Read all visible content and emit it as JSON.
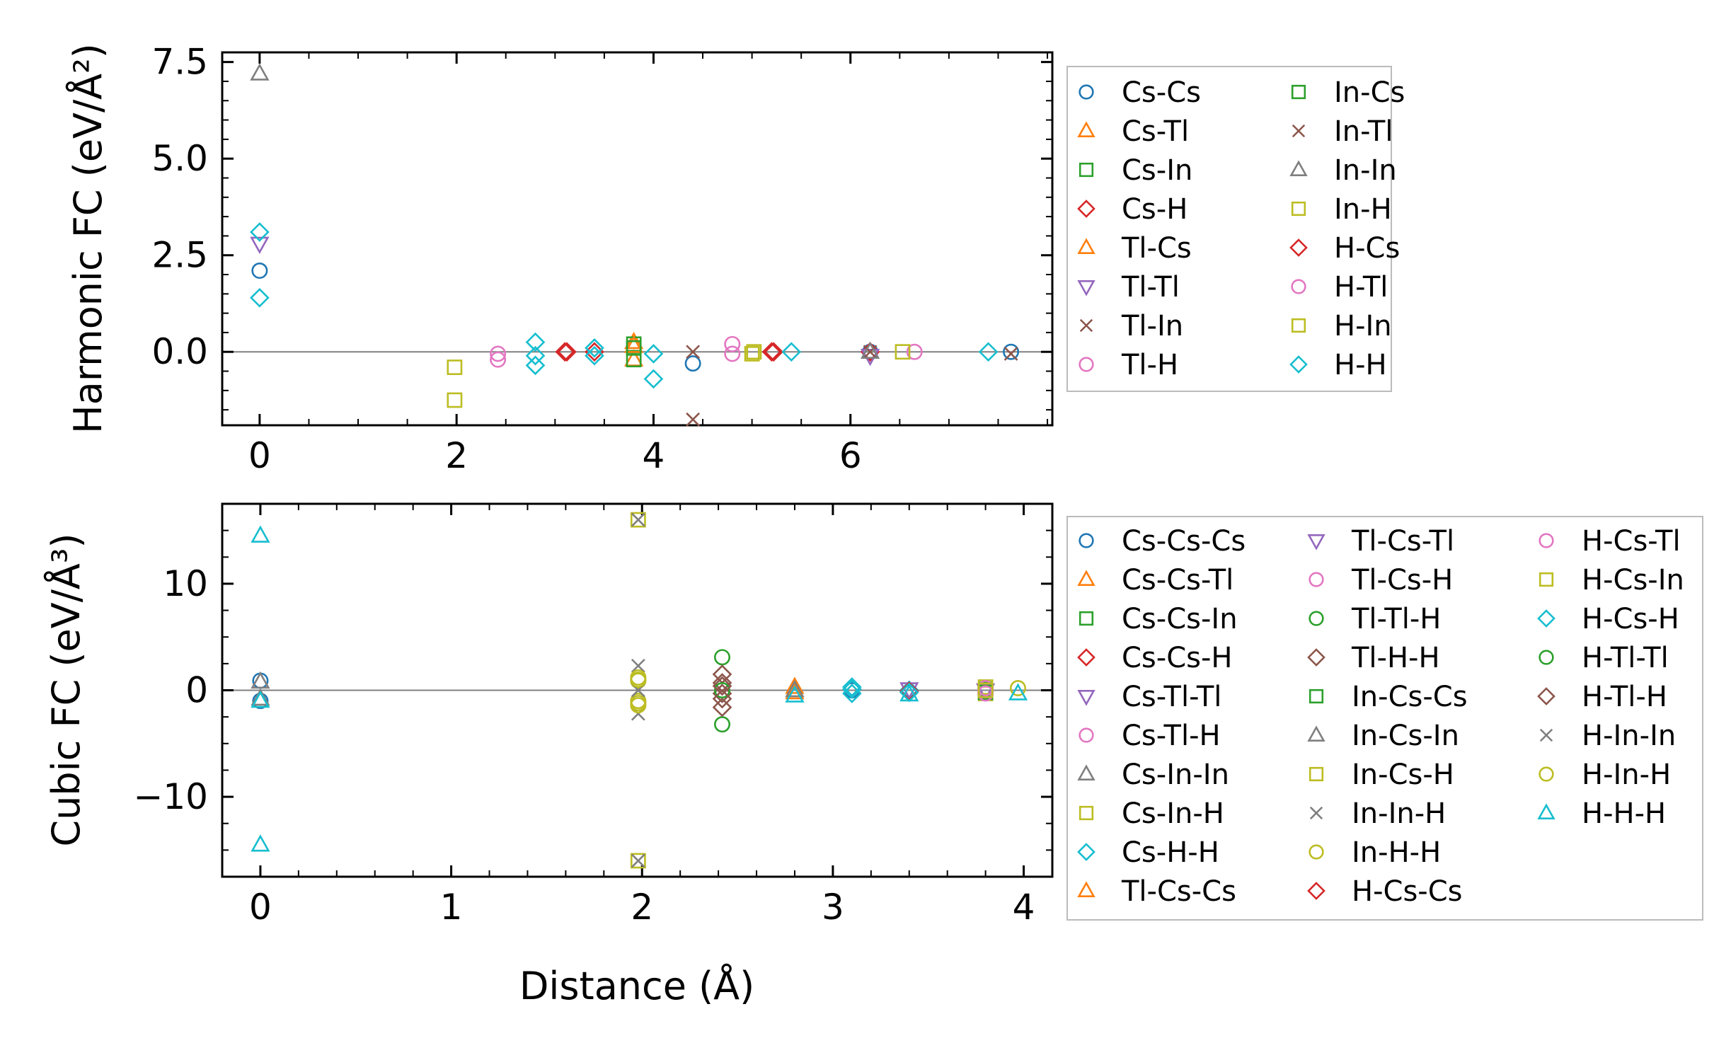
{
  "chart_data": [
    {
      "type": "scatter",
      "panel": "top",
      "title": "",
      "xlabel": "",
      "ylabel": "Harmonic FC (eV/Å²)",
      "xlim": [
        -0.38,
        8.05
      ],
      "ylim": [
        -1.9,
        7.75
      ],
      "xticks": [
        0,
        2,
        4,
        6
      ],
      "xtick_labels": [
        "0",
        "2",
        "4",
        "6"
      ],
      "yticks": [
        0,
        2.5,
        5,
        7.5
      ],
      "ytick_labels": [
        "0.0",
        "2.5",
        "5.0",
        "7.5"
      ],
      "zero_line": true,
      "grid": false,
      "legend_position": "outside-right",
      "legend_columns": 2,
      "series": [
        {
          "name": "Cs-Cs",
          "color": "#1f77b4",
          "marker": "circle",
          "points": [
            [
              0,
              2.1
            ],
            [
              4.4,
              -0.3
            ],
            [
              6.2,
              0.0
            ],
            [
              7.63,
              0.0
            ]
          ]
        },
        {
          "name": "Cs-Tl",
          "color": "#ff7f0e",
          "marker": "triangle-up",
          "points": [
            [
              3.8,
              0.25
            ],
            [
              3.8,
              -0.2
            ]
          ]
        },
        {
          "name": "Cs-In",
          "color": "#2ca02c",
          "marker": "square",
          "points": [
            [
              3.8,
              0.2
            ],
            [
              3.8,
              -0.2
            ]
          ]
        },
        {
          "name": "Cs-H",
          "color": "#d62728",
          "marker": "diamond",
          "points": [
            [
              3.1,
              0.0
            ],
            [
              3.4,
              0.0
            ],
            [
              5.2,
              0.0
            ],
            [
              6.2,
              0.0
            ]
          ]
        },
        {
          "name": "Tl-Cs",
          "color": "#ff7f0e",
          "marker": "triangle-up",
          "points": [
            [
              3.8,
              0.15
            ]
          ]
        },
        {
          "name": "Tl-Tl",
          "color": "#9467bd",
          "marker": "triangle-down",
          "points": [
            [
              0,
              2.8
            ],
            [
              6.2,
              -0.1
            ]
          ]
        },
        {
          "name": "Tl-In",
          "color": "#8c564b",
          "marker": "x",
          "points": [
            [
              4.4,
              -1.75
            ],
            [
              4.4,
              0.0
            ],
            [
              7.63,
              -0.05
            ]
          ]
        },
        {
          "name": "Tl-H",
          "color": "#e377c2",
          "marker": "circle",
          "points": [
            [
              2.42,
              -0.05
            ],
            [
              2.42,
              -0.2
            ],
            [
              6.65,
              0.0
            ]
          ]
        },
        {
          "name": "In-Cs",
          "color": "#2ca02c",
          "marker": "square",
          "points": [
            [
              3.8,
              0.1
            ]
          ]
        },
        {
          "name": "In-Tl",
          "color": "#8c564b",
          "marker": "x",
          "points": [
            [
              6.2,
              0.0
            ]
          ]
        },
        {
          "name": "In-In",
          "color": "#7f7f7f",
          "marker": "triangle-up",
          "points": [
            [
              0,
              7.2
            ],
            [
              6.2,
              0.0
            ]
          ]
        },
        {
          "name": "In-H",
          "color": "#bcbd22",
          "marker": "square",
          "points": [
            [
              1.98,
              -0.4
            ],
            [
              1.98,
              -1.25
            ],
            [
              5.0,
              -0.05
            ],
            [
              6.53,
              0.0
            ]
          ]
        },
        {
          "name": "H-Cs",
          "color": "#d62728",
          "marker": "diamond",
          "points": [
            [
              3.12,
              0.0
            ],
            [
              5.22,
              0.0
            ]
          ]
        },
        {
          "name": "H-Tl",
          "color": "#e377c2",
          "marker": "circle",
          "points": [
            [
              4.8,
              0.2
            ],
            [
              4.8,
              -0.05
            ]
          ]
        },
        {
          "name": "H-In",
          "color": "#bcbd22",
          "marker": "square",
          "points": [
            [
              5.02,
              0.0
            ]
          ]
        },
        {
          "name": "H-H",
          "color": "#17becf",
          "marker": "diamond",
          "points": [
            [
              0,
              3.1
            ],
            [
              0,
              1.4
            ],
            [
              2.8,
              0.25
            ],
            [
              2.8,
              -0.1
            ],
            [
              2.8,
              -0.35
            ],
            [
              3.4,
              0.1
            ],
            [
              3.4,
              -0.1
            ],
            [
              4.0,
              -0.05
            ],
            [
              4.0,
              -0.7
            ],
            [
              5.4,
              0.0
            ],
            [
              7.4,
              0.0
            ]
          ]
        }
      ]
    },
    {
      "type": "scatter",
      "panel": "bottom",
      "title": "",
      "xlabel": "Distance (Å)",
      "ylabel": "Cubic FC (eV/Å³)",
      "xlim": [
        -0.2,
        4.15
      ],
      "ylim": [
        -17.5,
        17.5
      ],
      "xticks": [
        0,
        1,
        2,
        3,
        4
      ],
      "xtick_labels": [
        "0",
        "1",
        "2",
        "3",
        "4"
      ],
      "yticks": [
        -10,
        0,
        10
      ],
      "ytick_labels": [
        "−10",
        "0",
        "10"
      ],
      "zero_line": true,
      "grid": false,
      "legend_position": "outside-right",
      "legend_columns": 3,
      "series": [
        {
          "name": "Cs-Cs-Cs",
          "color": "#1f77b4",
          "marker": "circle",
          "points": [
            [
              0,
              0.9
            ],
            [
              0,
              -1.0
            ],
            [
              3.1,
              0.0
            ]
          ]
        },
        {
          "name": "Cs-Cs-Tl",
          "color": "#ff7f0e",
          "marker": "triangle-up",
          "points": [
            [
              2.8,
              0.3
            ]
          ]
        },
        {
          "name": "Cs-Cs-In",
          "color": "#2ca02c",
          "marker": "square",
          "points": [
            [
              3.8,
              0.1
            ]
          ]
        },
        {
          "name": "Cs-Cs-H",
          "color": "#d62728",
          "marker": "diamond",
          "points": [
            [
              3.4,
              0.0
            ]
          ]
        },
        {
          "name": "Cs-Tl-Tl",
          "color": "#9467bd",
          "marker": "triangle-down",
          "points": [
            [
              3.8,
              0.0
            ]
          ]
        },
        {
          "name": "Cs-Tl-H",
          "color": "#e377c2",
          "marker": "circle",
          "points": [
            [
              3.8,
              -0.1
            ]
          ]
        },
        {
          "name": "Cs-In-In",
          "color": "#7f7f7f",
          "marker": "triangle-up",
          "points": [
            [
              0,
              0.8
            ],
            [
              0,
              -0.8
            ]
          ]
        },
        {
          "name": "Cs-In-H",
          "color": "#bcbd22",
          "marker": "square",
          "points": [
            [
              3.8,
              0.3
            ],
            [
              3.8,
              -0.3
            ]
          ]
        },
        {
          "name": "Cs-H-H",
          "color": "#17becf",
          "marker": "diamond",
          "points": [
            [
              3.1,
              0.3
            ],
            [
              3.1,
              -0.3
            ],
            [
              3.4,
              0.0
            ]
          ]
        },
        {
          "name": "Tl-Cs-Cs",
          "color": "#ff7f0e",
          "marker": "triangle-up",
          "points": [
            [
              2.8,
              -0.2
            ]
          ]
        },
        {
          "name": "Tl-Cs-Tl",
          "color": "#9467bd",
          "marker": "triangle-down",
          "points": [
            [
              3.4,
              0.1
            ]
          ]
        },
        {
          "name": "Tl-Cs-H",
          "color": "#e377c2",
          "marker": "circle",
          "points": [
            [
              3.8,
              0.2
            ]
          ]
        },
        {
          "name": "Tl-Tl-H",
          "color": "#2ca02c",
          "marker": "circle",
          "points": [
            [
              2.42,
              3.1
            ],
            [
              2.42,
              -3.2
            ]
          ]
        },
        {
          "name": "Tl-H-H",
          "color": "#8c564b",
          "marker": "diamond",
          "points": [
            [
              2.42,
              1.5
            ],
            [
              2.42,
              0.7
            ],
            [
              2.42,
              -0.3
            ],
            [
              2.42,
              -1.6
            ]
          ]
        },
        {
          "name": "In-Cs-Cs",
          "color": "#2ca02c",
          "marker": "square",
          "points": [
            [
              3.8,
              -0.2
            ]
          ]
        },
        {
          "name": "In-Cs-In",
          "color": "#7f7f7f",
          "marker": "triangle-up",
          "points": [
            [
              2.8,
              0.0
            ]
          ]
        },
        {
          "name": "In-Cs-H",
          "color": "#bcbd22",
          "marker": "square",
          "points": [
            [
              1.98,
              16.0
            ],
            [
              1.98,
              -16.0
            ]
          ]
        },
        {
          "name": "In-In-H",
          "color": "#7f7f7f",
          "marker": "x",
          "points": [
            [
              1.98,
              2.3
            ],
            [
              1.98,
              -2.2
            ],
            [
              1.98,
              16.0
            ],
            [
              1.98,
              -16.0
            ]
          ]
        },
        {
          "name": "In-H-H",
          "color": "#bcbd22",
          "marker": "circle",
          "points": [
            [
              1.98,
              1.2
            ],
            [
              1.98,
              0.9
            ],
            [
              1.98,
              -1.0
            ],
            [
              1.98,
              -1.4
            ],
            [
              3.97,
              0.2
            ]
          ]
        },
        {
          "name": "H-Cs-Cs",
          "color": "#d62728",
          "marker": "diamond",
          "points": [
            [
              3.4,
              -0.1
            ]
          ]
        },
        {
          "name": "H-Cs-Tl",
          "color": "#e377c2",
          "marker": "circle",
          "points": [
            [
              3.8,
              -0.3
            ]
          ]
        },
        {
          "name": "H-Cs-In",
          "color": "#bcbd22",
          "marker": "square",
          "points": [
            [
              3.8,
              0.0
            ]
          ]
        },
        {
          "name": "H-Cs-H",
          "color": "#17becf",
          "marker": "diamond",
          "points": [
            [
              3.1,
              0.1
            ],
            [
              3.4,
              -0.2
            ]
          ]
        },
        {
          "name": "H-Tl-Tl",
          "color": "#2ca02c",
          "marker": "circle",
          "points": [
            [
              2.42,
              0.0
            ]
          ]
        },
        {
          "name": "H-Tl-H",
          "color": "#8c564b",
          "marker": "diamond",
          "points": [
            [
              2.42,
              0.4
            ],
            [
              2.42,
              -0.8
            ]
          ]
        },
        {
          "name": "H-In-In",
          "color": "#7f7f7f",
          "marker": "x",
          "points": [
            [
              1.98,
              0.0
            ]
          ]
        },
        {
          "name": "H-In-H",
          "color": "#bcbd22",
          "marker": "circle",
          "points": [
            [
              1.98,
              1.0
            ],
            [
              1.98,
              -1.2
            ]
          ]
        },
        {
          "name": "H-H-H",
          "color": "#17becf",
          "marker": "triangle-up",
          "points": [
            [
              0,
              14.5
            ],
            [
              0,
              -14.5
            ],
            [
              0,
              -1.0
            ],
            [
              2.8,
              -0.5
            ],
            [
              3.4,
              -0.4
            ],
            [
              3.97,
              -0.3
            ]
          ]
        }
      ]
    }
  ]
}
